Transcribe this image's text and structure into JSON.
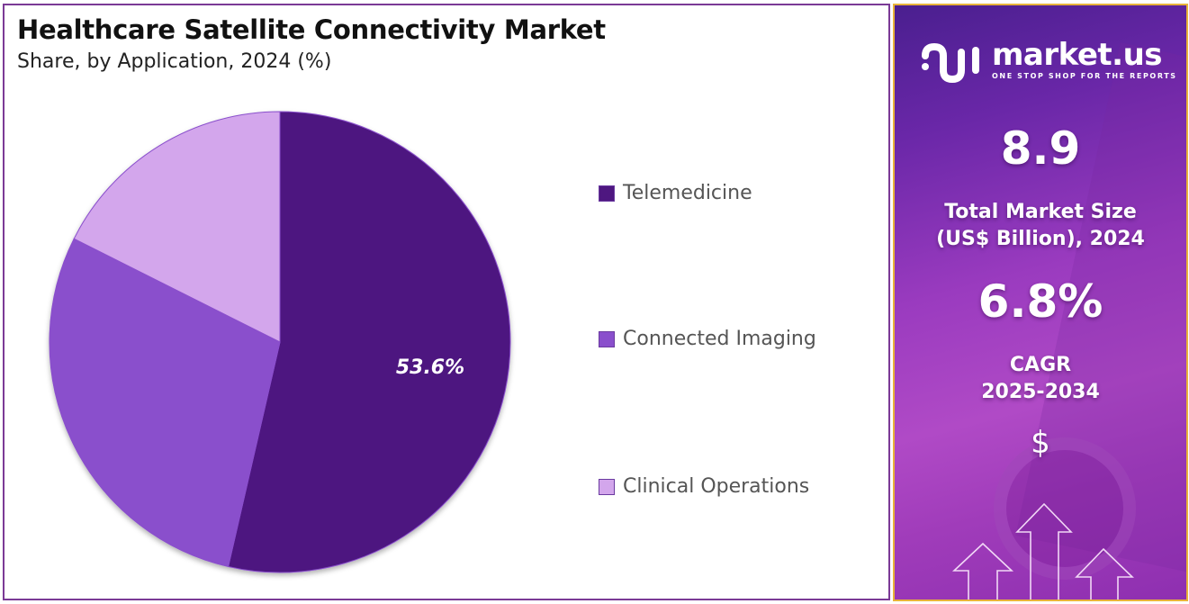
{
  "header": {
    "title": "Healthcare Satellite Connectivity Market",
    "subtitle": "Share, by Application, 2024 (%)"
  },
  "legend": {
    "items": [
      {
        "label": "Telemedicine",
        "color": "#4e1780"
      },
      {
        "label": "Connected Imaging",
        "color": "#8a4fcc"
      },
      {
        "label": "Clinical Operations",
        "color": "#d3a6ec"
      }
    ]
  },
  "pie": {
    "slice_label": "53.6%"
  },
  "chart_data": {
    "type": "pie",
    "title": "Healthcare Satellite Connectivity Market",
    "subtitle": "Share, by Application, 2024 (%)",
    "categories": [
      "Telemedicine",
      "Connected Imaging",
      "Clinical Operations"
    ],
    "values": [
      53.6,
      28.8,
      17.6
    ],
    "labeled_values": {
      "Telemedicine": 53.6
    },
    "colors": [
      "#4e1780",
      "#8a4fcc",
      "#d3a6ec"
    ],
    "start_angle": "12 o'clock, clockwise",
    "legend_position": "right"
  },
  "sidebar": {
    "brand_name": "market.us",
    "brand_tagline": "ONE STOP SHOP FOR THE REPORTS",
    "market_size_value": "8.9",
    "market_size_label_line1": "Total Market Size",
    "market_size_label_line2": "(US$ Billion), 2024",
    "cagr_value": "6.8%",
    "cagr_label_line1": "CAGR",
    "cagr_label_line2": "2025-2034",
    "currency_symbol": "$",
    "accent_border": "#e8b23a"
  }
}
